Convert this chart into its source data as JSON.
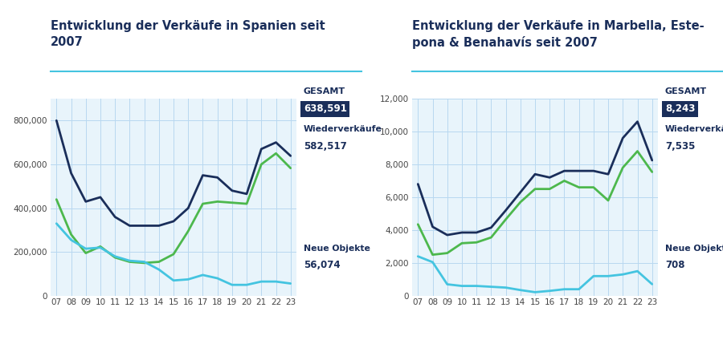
{
  "title_left": "Entwicklung der Verkäufe in Spanien seit\n2007",
  "title_right": "Entwicklung der Verkäufe in Marbella, Este-\npona & Benahavís seit 2007",
  "years": [
    7,
    8,
    9,
    10,
    11,
    12,
    13,
    14,
    15,
    16,
    17,
    18,
    19,
    20,
    21,
    22,
    23
  ],
  "spain_gesamt": [
    800000,
    560000,
    430000,
    450000,
    360000,
    320000,
    320000,
    320000,
    340000,
    400000,
    550000,
    540000,
    480000,
    465000,
    670000,
    700000,
    638591
  ],
  "spain_wieder": [
    440000,
    280000,
    195000,
    225000,
    175000,
    155000,
    150000,
    155000,
    190000,
    295000,
    420000,
    430000,
    425000,
    420000,
    600000,
    650000,
    582517
  ],
  "spain_neue": [
    330000,
    255000,
    215000,
    220000,
    180000,
    160000,
    155000,
    120000,
    70000,
    75000,
    95000,
    80000,
    50000,
    50000,
    65000,
    65000,
    56074
  ],
  "marb_gesamt": [
    6800,
    4200,
    3700,
    3850,
    3850,
    4150,
    5200,
    6300,
    7400,
    7200,
    7600,
    7600,
    7600,
    7400,
    9600,
    10600,
    8243
  ],
  "marb_wieder": [
    4350,
    2500,
    2600,
    3200,
    3250,
    3550,
    4650,
    5700,
    6500,
    6500,
    7000,
    6600,
    6600,
    5800,
    7800,
    8800,
    7535
  ],
  "marb_neue": [
    2400,
    2050,
    700,
    600,
    600,
    550,
    500,
    350,
    220,
    300,
    400,
    400,
    1200,
    1200,
    1300,
    1500,
    708
  ],
  "color_gesamt": "#1a2e5a",
  "color_wieder": "#4db84d",
  "color_neue": "#44c4e0",
  "label_gesamt": "GESAMT",
  "label_wieder": "Wiederverkäufe",
  "label_neue": "Neue Objekte",
  "val_spain_gesamt": "638,591",
  "val_spain_wieder": "582,517",
  "val_spain_neue": "56,074",
  "val_marb_gesamt": "8,243",
  "val_marb_wieder": "7,535",
  "val_marb_neue": "708",
  "bg_color": "#ffffff",
  "grid_color": "#b8d8f0",
  "axis_label_color": "#444444",
  "title_color": "#1a2e5a",
  "box_bg": "#1a2e5a",
  "box_fg": "#ffffff",
  "line_color": "#44c4e0"
}
